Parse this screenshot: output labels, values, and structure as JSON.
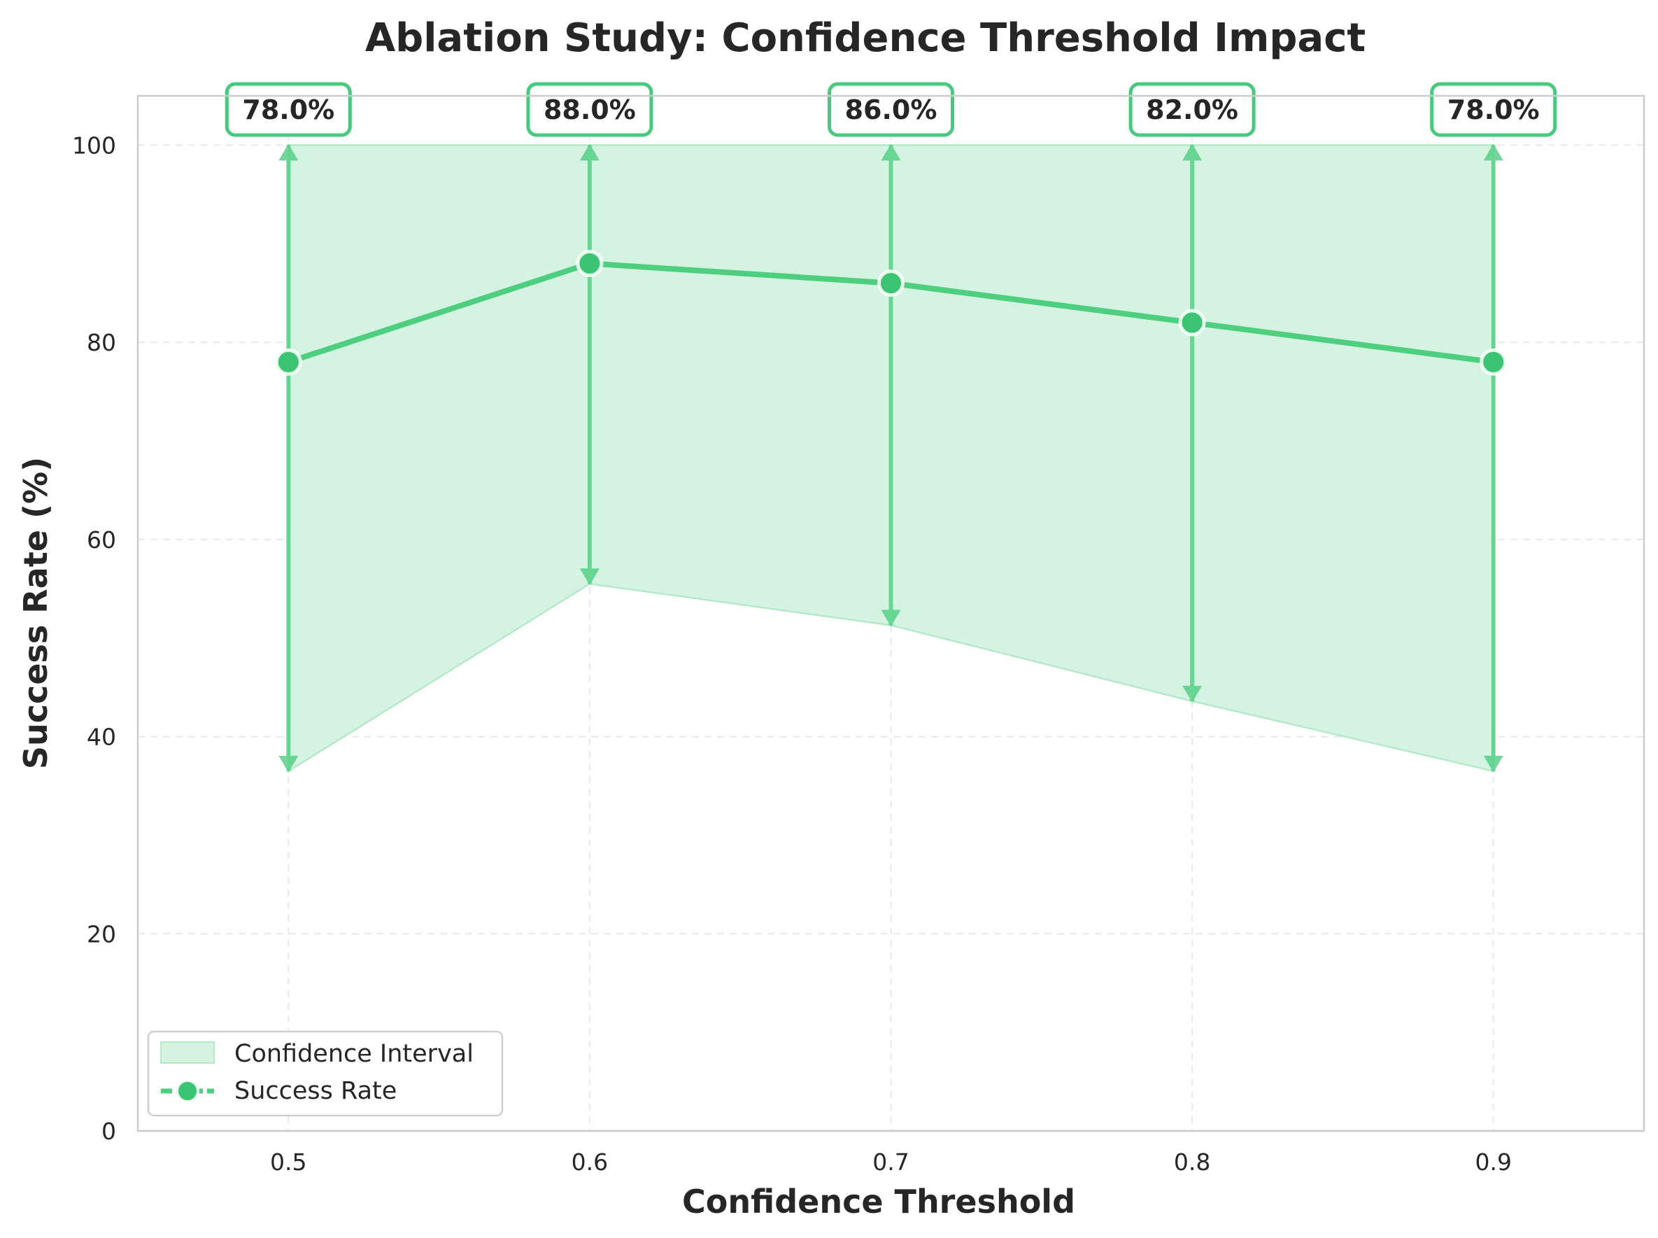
{
  "chart_data": {
    "type": "line",
    "title": "Ablation Study: Confidence Threshold Impact",
    "xlabel": "Confidence Threshold",
    "ylabel": "Success Rate (%)",
    "x": [
      0.5,
      0.6,
      0.7,
      0.8,
      0.9
    ],
    "x_tick_labels": [
      "0.5",
      "0.6",
      "0.7",
      "0.8",
      "0.9"
    ],
    "xlim": [
      0.45,
      0.95
    ],
    "ylim": [
      0,
      105
    ],
    "y_ticks": [
      0,
      20,
      40,
      60,
      80,
      100
    ],
    "y_tick_labels": [
      "0",
      "20",
      "40",
      "60",
      "80",
      "100"
    ],
    "grid": true,
    "series": [
      {
        "name": "Success Rate",
        "values": [
          78.0,
          88.0,
          86.0,
          82.0,
          78.0
        ],
        "data_labels": [
          "78.0%",
          "88.0%",
          "86.0%",
          "82.0%",
          "78.0%"
        ]
      }
    ],
    "confidence_interval": {
      "name": "Confidence Interval",
      "lower": [
        36.5,
        55.5,
        51.3,
        43.6,
        36.5
      ],
      "upper": [
        100,
        100,
        100,
        100,
        100
      ]
    },
    "legend": {
      "position": "lower-left",
      "entries": [
        "Confidence Interval",
        "Success Rate"
      ]
    },
    "colors": {
      "line": "#4ecf80",
      "fill": "#d5f3e1",
      "fill_edge": "#b4e9c9",
      "marker": "#3bc572",
      "label_border": "#46cb7e",
      "grid": "#e8e8e8",
      "spine": "#cccccc",
      "text": "#262626"
    }
  }
}
